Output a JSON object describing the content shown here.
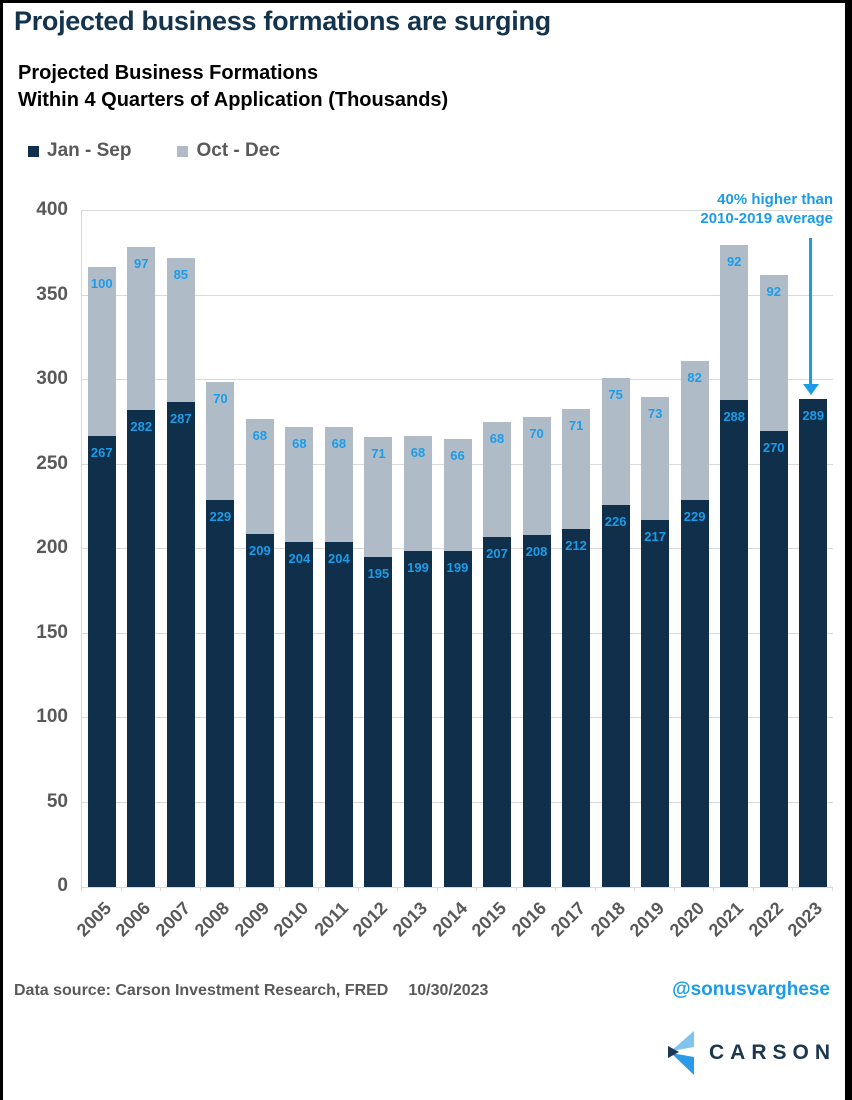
{
  "page": {
    "title": "Projected business formations are surging",
    "subtitle_line1": "Projected Business Formations",
    "subtitle_line2": "Within 4 Quarters of Application (Thousands)"
  },
  "annotation": {
    "line1": "40% higher than",
    "line2": "2010-2019 average",
    "color": "#1b9ce9",
    "points_to": "2023"
  },
  "chart_data": {
    "type": "bar",
    "stacked": true,
    "title": "Projected Business Formations Within 4 Quarters of Application (Thousands)",
    "categories": [
      "2005",
      "2006",
      "2007",
      "2008",
      "2009",
      "2010",
      "2011",
      "2012",
      "2013",
      "2014",
      "2015",
      "2016",
      "2017",
      "2018",
      "2019",
      "2020",
      "2021",
      "2022",
      "2023"
    ],
    "series": [
      {
        "name": "Jan - Sep",
        "color": "#102f4a",
        "values": [
          267,
          282,
          287,
          229,
          209,
          204,
          204,
          195,
          199,
          199,
          207,
          208,
          212,
          226,
          217,
          229,
          288,
          270,
          289
        ]
      },
      {
        "name": "Oct - Dec",
        "color": "#afbcc8",
        "values": [
          100,
          97,
          85,
          70,
          68,
          68,
          68,
          71,
          68,
          66,
          68,
          70,
          71,
          75,
          73,
          82,
          92,
          92,
          null
        ]
      }
    ],
    "ylim": [
      0,
      400
    ],
    "yticks": [
      0,
      50,
      100,
      150,
      200,
      250,
      300,
      350,
      400
    ],
    "grid": "horizontal",
    "legend_position": "top-left",
    "value_label_color": "#1b9ce9",
    "axis_text_color": "#595959"
  },
  "footer": {
    "source": "Data source: Carson Investment Research, FRED",
    "date": "10/30/2023",
    "handle": "@sonusvarghese"
  },
  "logo": {
    "text": "CARSON",
    "icon": "carson-chevron-icon",
    "colors": {
      "light_blue": "#7fc3ee",
      "bright_blue": "#2b9be8",
      "navy": "#1b3850"
    }
  }
}
